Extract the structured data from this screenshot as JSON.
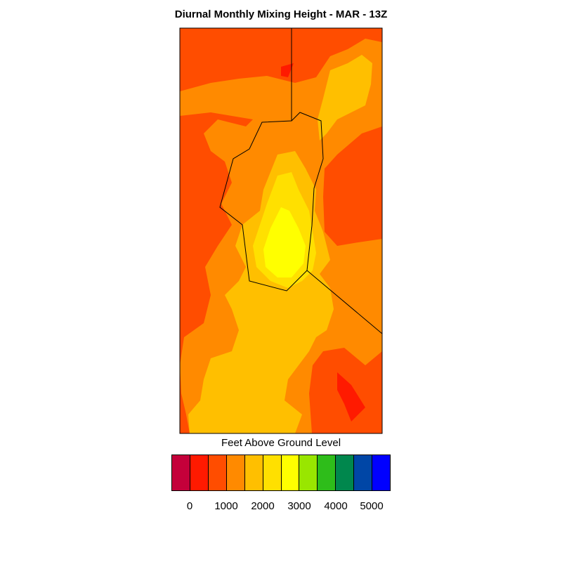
{
  "title": "Diurnal Monthly Mixing Height - MAR - 13Z",
  "colorbar": {
    "label": "Feet Above Ground Level",
    "colors": [
      "#c4003a",
      "#ff1a00",
      "#ff4d00",
      "#ff8a00",
      "#ffbf00",
      "#ffe000",
      "#ffff00",
      "#99e600",
      "#2ebd1a",
      "#00874d",
      "#0046a6",
      "#0000ff"
    ],
    "tick_labels": [
      "0",
      "1000",
      "2000",
      "3000",
      "4000",
      "5000"
    ]
  },
  "map_colors": {
    "background": "#ff4d00",
    "orange": "#ff8a00",
    "amber": "#ffbf00",
    "gold": "#ffe000",
    "yellow": "#ffff00",
    "red": "#ff1a00"
  }
}
